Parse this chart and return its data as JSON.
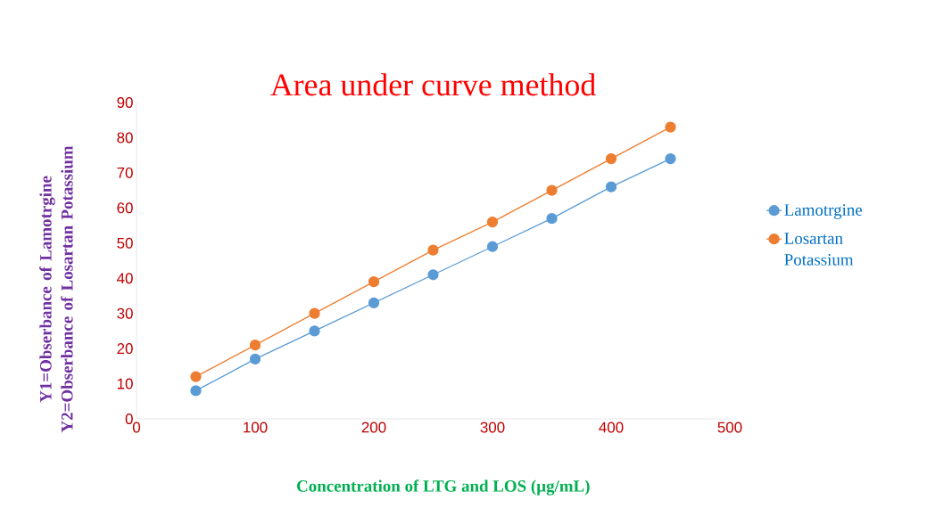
{
  "chart_data": {
    "type": "line",
    "title": "Area under curve method",
    "xlabel": "Concentration of LTG and LOS (µg/mL)",
    "ylabel": "Y1=Obserbance of Lamotrgine Y2=Obserbance of Losartan Potassium",
    "x": [
      50,
      100,
      150,
      200,
      250,
      300,
      350,
      400,
      450
    ],
    "series": [
      {
        "name": "Lamotrgine",
        "color": "#5b9bd5",
        "values": [
          8,
          17,
          25,
          33,
          41,
          49,
          57,
          66,
          74
        ]
      },
      {
        "name": "Losartan Potassium",
        "color": "#ed7d31",
        "values": [
          12,
          21,
          30,
          39,
          48,
          56,
          65,
          74,
          83
        ]
      }
    ],
    "xlim": [
      0,
      500
    ],
    "ylim": [
      0,
      90
    ],
    "xticks": [
      0,
      100,
      200,
      300,
      400,
      500
    ],
    "yticks": [
      0,
      10,
      20,
      30,
      40,
      50,
      60,
      70,
      80,
      90
    ],
    "marker": "circle",
    "line_style": "solid",
    "legend": "right"
  }
}
